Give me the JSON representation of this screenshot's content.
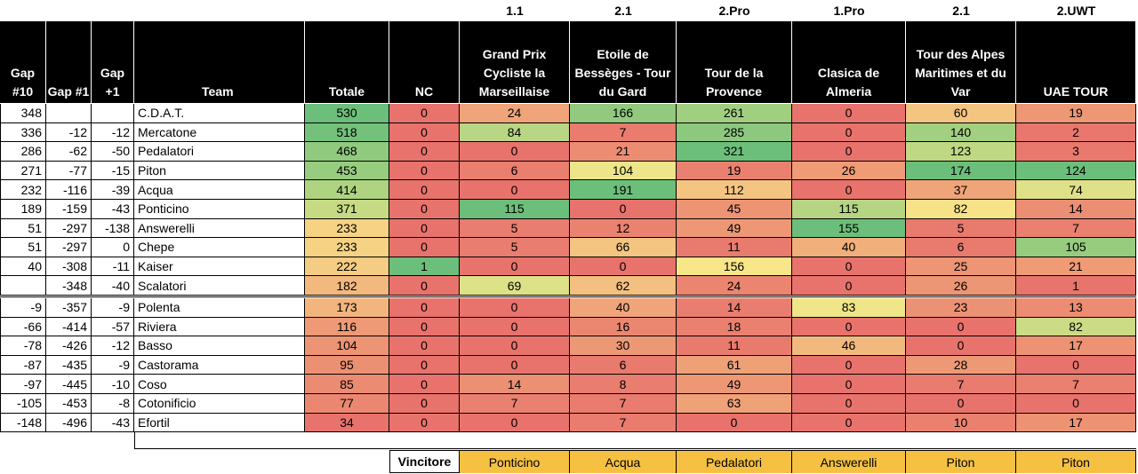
{
  "sheet": {
    "categories": [
      "1.1",
      "2.1",
      "2.Pro",
      "1.Pro",
      "2.1",
      "2.UWT"
    ],
    "headers": {
      "gap10": "Gap #10",
      "gap1": "Gap #1",
      "gapp1": "Gap +1",
      "team": "Team",
      "totale": "Totale",
      "nc": "NC",
      "races": [
        "Grand Prix Cycliste la Marseillaise",
        "Etoile de Bessèges - Tour du Gard",
        "Tour de la Provence",
        "Clasica de Almeria",
        "Tour des Alpes Maritimes et du Var",
        "UAE TOUR"
      ]
    },
    "rows": [
      {
        "gap10": "348",
        "gap1": "",
        "gapp1": "",
        "team": "C.D.A.T.",
        "totale": "530",
        "nc": "0",
        "races": [
          "24",
          "166",
          "261",
          "0",
          "60",
          "19"
        ]
      },
      {
        "gap10": "336",
        "gap1": "-12",
        "gapp1": "-12",
        "team": "Mercatone",
        "totale": "518",
        "nc": "0",
        "races": [
          "84",
          "7",
          "285",
          "0",
          "140",
          "2"
        ]
      },
      {
        "gap10": "286",
        "gap1": "-62",
        "gapp1": "-50",
        "team": "Pedalatori",
        "totale": "468",
        "nc": "0",
        "races": [
          "0",
          "21",
          "321",
          "0",
          "123",
          "3"
        ]
      },
      {
        "gap10": "271",
        "gap1": "-77",
        "gapp1": "-15",
        "team": "Piton",
        "totale": "453",
        "nc": "0",
        "races": [
          "6",
          "104",
          "19",
          "26",
          "174",
          "124"
        ]
      },
      {
        "gap10": "232",
        "gap1": "-116",
        "gapp1": "-39",
        "team": "Acqua",
        "totale": "414",
        "nc": "0",
        "races": [
          "0",
          "191",
          "112",
          "0",
          "37",
          "74"
        ]
      },
      {
        "gap10": "189",
        "gap1": "-159",
        "gapp1": "-43",
        "team": "Ponticino",
        "totale": "371",
        "nc": "0",
        "races": [
          "115",
          "0",
          "45",
          "115",
          "82",
          "14"
        ]
      },
      {
        "gap10": "51",
        "gap1": "-297",
        "gapp1": "-138",
        "team": "Answerelli",
        "totale": "233",
        "nc": "0",
        "races": [
          "5",
          "12",
          "49",
          "155",
          "5",
          "7"
        ]
      },
      {
        "gap10": "51",
        "gap1": "-297",
        "gapp1": "0",
        "team": "Chepe",
        "totale": "233",
        "nc": "0",
        "races": [
          "5",
          "66",
          "11",
          "40",
          "6",
          "105"
        ]
      },
      {
        "gap10": "40",
        "gap1": "-308",
        "gapp1": "-11",
        "team": "Kaiser",
        "totale": "222",
        "nc": "1",
        "races": [
          "0",
          "0",
          "156",
          "0",
          "25",
          "21"
        ]
      },
      {
        "gap10": "",
        "gap1": "-348",
        "gapp1": "-40",
        "team": "Scalatori",
        "totale": "182",
        "nc": "0",
        "races": [
          "69",
          "62",
          "24",
          "0",
          "26",
          "1"
        ]
      },
      {
        "gap10": "-9",
        "gap1": "-357",
        "gapp1": "-9",
        "team": "Polenta",
        "totale": "173",
        "nc": "0",
        "races": [
          "0",
          "40",
          "14",
          "83",
          "23",
          "13"
        ]
      },
      {
        "gap10": "-66",
        "gap1": "-414",
        "gapp1": "-57",
        "team": "Riviera",
        "totale": "116",
        "nc": "0",
        "races": [
          "0",
          "16",
          "18",
          "0",
          "0",
          "82"
        ]
      },
      {
        "gap10": "-78",
        "gap1": "-426",
        "gapp1": "-12",
        "team": "Basso",
        "totale": "104",
        "nc": "0",
        "races": [
          "0",
          "30",
          "11",
          "46",
          "0",
          "17"
        ]
      },
      {
        "gap10": "-87",
        "gap1": "-435",
        "gapp1": "-9",
        "team": "Castorama",
        "totale": "95",
        "nc": "0",
        "races": [
          "0",
          "6",
          "61",
          "0",
          "28",
          "0"
        ]
      },
      {
        "gap10": "-97",
        "gap1": "-445",
        "gapp1": "-10",
        "team": "Coso",
        "totale": "85",
        "nc": "0",
        "races": [
          "14",
          "8",
          "49",
          "0",
          "7",
          "7"
        ]
      },
      {
        "gap10": "-105",
        "gap1": "-453",
        "gapp1": "-8",
        "team": "Cotonificio",
        "totale": "77",
        "nc": "0",
        "races": [
          "7",
          "7",
          "63",
          "0",
          "0",
          "0"
        ]
      },
      {
        "gap10": "-148",
        "gap1": "-496",
        "gapp1": "-43",
        "team": "Efortil",
        "totale": "34",
        "nc": "0",
        "races": [
          "0",
          "7",
          "0",
          "0",
          "10",
          "17"
        ]
      }
    ],
    "winner_label": "Vincitore",
    "winners": [
      "Ponticino",
      "Acqua",
      "Pedalatori",
      "Answerelli",
      "Piton",
      "Piton"
    ],
    "colors": {
      "header_bg": "#000000",
      "header_text": "#ffffff",
      "scale_low": "#e8736c",
      "scale_mid": "#f9e98a",
      "scale_high": "#6cbf7a",
      "winner_bg": "#f6c142"
    }
  }
}
